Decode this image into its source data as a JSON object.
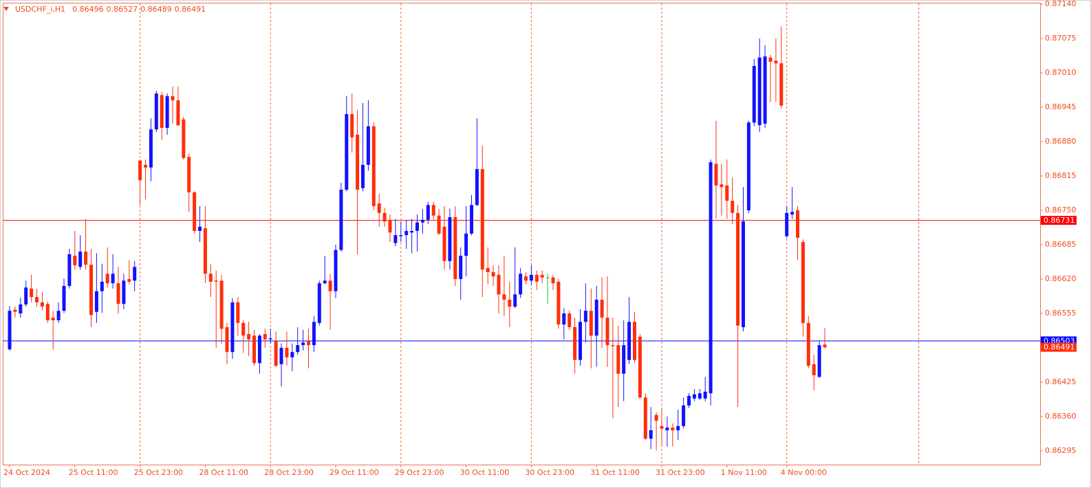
{
  "chart_data": {
    "type": "candlestick",
    "title": "USDCHF_i,H1",
    "header_values": [
      0.86496,
      0.86527,
      0.86489,
      0.86491
    ],
    "categories": [
      "24 Oct 2024",
      null,
      null,
      null,
      null,
      null,
      null,
      null,
      null,
      null,
      null,
      null,
      "25 Oct 11:00",
      null,
      null,
      null,
      null,
      null,
      null,
      null,
      null,
      null,
      null,
      null,
      "25 Oct 23:00",
      null,
      null,
      null,
      null,
      null,
      null,
      null,
      null,
      null,
      null,
      null,
      "28 Oct 11:00",
      null,
      null,
      null,
      null,
      null,
      null,
      null,
      null,
      null,
      null,
      null,
      "28 Oct 23:00",
      null,
      null,
      null,
      null,
      null,
      null,
      null,
      null,
      null,
      null,
      null,
      "29 Oct 11:00",
      null,
      null,
      null,
      null,
      null,
      null,
      null,
      null,
      null,
      null,
      null,
      "29 Oct 23:00",
      null,
      null,
      null,
      null,
      null,
      null,
      null,
      null,
      null,
      null,
      null,
      "30 Oct 11:00",
      null,
      null,
      null,
      null,
      null,
      null,
      null,
      null,
      null,
      null,
      null,
      "30 Oct 23:00",
      null,
      null,
      null,
      null,
      null,
      null,
      null,
      null,
      null,
      null,
      null,
      "31 Oct 11:00",
      null,
      null,
      null,
      null,
      null,
      null,
      null,
      null,
      null,
      null,
      null,
      "31 Oct 23:00",
      null,
      null,
      null,
      null,
      null,
      null,
      null,
      null,
      null,
      null,
      null,
      "1 Nov 11:00",
      null,
      null,
      null,
      null,
      null,
      null,
      null,
      null,
      null,
      null,
      "4 Nov 00:00",
      null,
      null,
      null,
      null,
      null,
      null,
      null
    ],
    "open": [
      0.86487,
      0.86562,
      0.86555,
      0.86572,
      0.86602,
      0.86586,
      0.86576,
      0.86573,
      0.86547,
      0.86542,
      0.8656,
      0.86607,
      0.86664,
      0.86643,
      0.86672,
      0.86647,
      0.86558,
      0.86597,
      0.8663,
      0.86612,
      0.86612,
      0.86573,
      0.8662,
      0.86617,
      0.86844,
      0.86836,
      0.86831,
      0.86903,
      0.86968,
      0.86906,
      0.86966,
      0.86958,
      0.86922,
      0.86851,
      0.86784,
      0.86711,
      0.86716,
      0.8663,
      0.86617,
      0.86617,
      0.86529,
      0.86482,
      0.86576,
      0.86537,
      0.86516,
      0.86513,
      0.86461,
      0.86516,
      0.86506,
      0.86503,
      0.86459,
      0.8649,
      0.86472,
      0.86482,
      0.86495,
      0.86503,
      0.86495,
      0.86537,
      0.86612,
      0.86617,
      0.86597,
      0.86675,
      0.86789,
      0.86932,
      0.86893,
      0.86792,
      0.86836,
      0.86909,
      0.86763,
      0.86745,
      0.86732,
      0.86688,
      0.86701,
      0.86703,
      0.86708,
      0.86711,
      0.86727,
      0.86732,
      0.8676,
      0.8674,
      0.86719,
      0.86654,
      0.86737,
      0.8662,
      0.86664,
      0.86706,
      0.8676,
      0.86828,
      0.86641,
      0.86633,
      0.86628,
      0.86591,
      0.86581,
      0.86568,
      0.86591,
      0.86625,
      0.86617,
      0.86628,
      0.86628,
      0.86623,
      0.86623,
      0.86615,
      0.86534,
      0.86555,
      0.86529,
      0.86467,
      0.86539,
      0.8656,
      0.86513,
      0.86581,
      0.86547,
      0.86495,
      0.86495,
      0.86441,
      0.86467,
      0.86539,
      0.86511,
      0.86396,
      0.86318,
      0.86363,
      0.86342,
      0.86334,
      0.86339,
      0.86334,
      0.86342,
      0.86381,
      0.86394,
      0.86394,
      0.86394,
      0.86404,
      0.86838,
      0.86799,
      0.86797,
      0.86768,
      0.86745,
      0.86529,
      0.8675,
      0.86916,
      0.86911,
      0.86914,
      0.87039,
      0.87033,
      0.87028,
      0.86701,
      0.86742,
      0.8675,
      0.8669,
      0.86537,
      0.86459,
      0.86435,
      0.86496
    ],
    "high": [
      0.86569,
      0.86568,
      0.86585,
      0.86617,
      0.86628,
      0.86602,
      0.86595,
      0.86578,
      0.8656,
      0.86576,
      0.86621,
      0.86677,
      0.86711,
      0.86703,
      0.86734,
      0.86677,
      0.86669,
      0.86649,
      0.8668,
      0.86667,
      0.86643,
      0.8663,
      0.86656,
      0.86654,
      0.86846,
      0.86846,
      0.86924,
      0.86976,
      0.86974,
      0.86971,
      0.86984,
      0.86984,
      0.86927,
      0.86857,
      0.86786,
      0.86758,
      0.86758,
      0.86649,
      0.86636,
      0.86628,
      0.86537,
      0.86584,
      0.86586,
      0.86542,
      0.86539,
      0.86524,
      0.86516,
      0.86526,
      0.86526,
      0.86521,
      0.86498,
      0.86521,
      0.86498,
      0.86529,
      0.86524,
      0.86526,
      0.8655,
      0.86617,
      0.86664,
      0.8663,
      0.86685,
      0.86802,
      0.86966,
      0.86971,
      0.8694,
      0.86953,
      0.86958,
      0.86916,
      0.86781,
      0.86755,
      0.86742,
      0.86734,
      0.86729,
      0.86732,
      0.86734,
      0.86742,
      0.86753,
      0.86766,
      0.86766,
      0.86753,
      0.86758,
      0.86753,
      0.86758,
      0.8668,
      0.86758,
      0.86779,
      0.86924,
      0.86872,
      0.8668,
      0.86646,
      0.86646,
      0.86664,
      0.86615,
      0.8668,
      0.86641,
      0.86633,
      0.86646,
      0.86636,
      0.86636,
      0.8663,
      0.86628,
      0.8662,
      0.86565,
      0.8656,
      0.86547,
      0.86563,
      0.86612,
      0.86602,
      0.86607,
      0.86623,
      0.86625,
      0.86547,
      0.86532,
      0.86542,
      0.86586,
      0.86558,
      0.86516,
      0.86404,
      0.86378,
      0.86368,
      0.86376,
      0.8636,
      0.86347,
      0.86373,
      0.86396,
      0.86404,
      0.86412,
      0.86412,
      0.86435,
      0.86846,
      0.86919,
      0.86838,
      0.86846,
      0.86812,
      0.8676,
      0.86794,
      0.86919,
      0.87036,
      0.87075,
      0.87062,
      0.87044,
      0.87075,
      0.87098,
      0.86758,
      0.86794,
      0.86758,
      0.86695,
      0.8655,
      0.86477,
      0.86503,
      0.86527
    ],
    "low": [
      0.86485,
      0.86547,
      0.86547,
      0.86568,
      0.86576,
      0.86568,
      0.8656,
      0.86537,
      0.86487,
      0.86537,
      0.86556,
      0.86602,
      0.86638,
      0.86638,
      0.86638,
      0.86529,
      0.86537,
      0.86556,
      0.86604,
      0.86602,
      0.86555,
      0.86563,
      0.8661,
      0.86597,
      0.8676,
      0.86771,
      0.86805,
      0.86898,
      0.86883,
      0.86893,
      0.86914,
      0.86909,
      0.86846,
      0.86747,
      0.86706,
      0.8669,
      0.86612,
      0.86586,
      0.8649,
      0.86498,
      0.86459,
      0.86469,
      0.86513,
      0.8648,
      0.86474,
      0.86456,
      0.86441,
      0.8649,
      0.86498,
      0.86454,
      0.86417,
      0.86456,
      0.86446,
      0.86477,
      0.86485,
      0.86451,
      0.86482,
      0.86532,
      0.8661,
      0.86524,
      0.86584,
      0.86672,
      0.86786,
      0.86859,
      0.86667,
      0.86786,
      0.86825,
      0.8675,
      0.86719,
      0.86719,
      0.8669,
      0.86682,
      0.8669,
      0.86677,
      0.86669,
      0.86672,
      0.86706,
      0.86724,
      0.86732,
      0.86703,
      0.86638,
      0.86638,
      0.86607,
      0.86581,
      0.86625,
      0.86703,
      0.86758,
      0.86586,
      0.8661,
      0.86607,
      0.86555,
      0.8655,
      0.86529,
      0.86565,
      0.86584,
      0.8661,
      0.8661,
      0.86599,
      0.86612,
      0.86573,
      0.86599,
      0.86526,
      0.86506,
      0.86524,
      0.86441,
      0.86456,
      0.865,
      0.86451,
      0.86454,
      0.8649,
      0.86454,
      0.86357,
      0.86378,
      0.86389,
      0.86459,
      0.86461,
      0.86394,
      0.86316,
      0.86298,
      0.86296,
      0.86303,
      0.86303,
      0.86303,
      0.86316,
      0.86337,
      0.86376,
      0.86389,
      0.86391,
      0.86389,
      0.86381,
      0.86734,
      0.8674,
      0.86734,
      0.86724,
      0.86378,
      0.86521,
      0.86745,
      0.86909,
      0.86898,
      0.86906,
      0.86955,
      0.86955,
      0.86942,
      0.86698,
      0.86734,
      0.86656,
      0.86511,
      0.86451,
      0.86409,
      0.86433,
      0.86489
    ],
    "close": [
      0.8656,
      0.86558,
      0.86572,
      0.86604,
      0.86586,
      0.86576,
      0.86568,
      0.86542,
      0.86542,
      0.8656,
      0.86607,
      0.86667,
      0.86646,
      0.86672,
      0.86647,
      0.86552,
      0.86597,
      0.86615,
      0.86612,
      0.8663,
      0.86573,
      0.86617,
      0.86615,
      0.86643,
      0.86807,
      0.86831,
      0.86903,
      0.86971,
      0.86906,
      0.86966,
      0.86958,
      0.86911,
      0.86849,
      0.86784,
      0.86711,
      0.86719,
      0.8663,
      0.86615,
      0.86615,
      0.86526,
      0.86482,
      0.86576,
      0.86537,
      0.86513,
      0.86506,
      0.86461,
      0.86513,
      0.86506,
      0.86508,
      0.86456,
      0.8649,
      0.86472,
      0.86482,
      0.86495,
      0.865,
      0.86495,
      0.86539,
      0.86612,
      0.86617,
      0.86597,
      0.86675,
      0.86789,
      0.86932,
      0.86888,
      0.86789,
      0.86836,
      0.86909,
      0.86758,
      0.86745,
      0.86729,
      0.86708,
      0.86703,
      0.86703,
      0.86711,
      0.86711,
      0.86727,
      0.86732,
      0.8676,
      0.8674,
      0.86706,
      0.86654,
      0.86737,
      0.8662,
      0.86664,
      0.86706,
      0.8676,
      0.86828,
      0.86638,
      0.86633,
      0.86625,
      0.86591,
      0.86581,
      0.86568,
      0.86591,
      0.8663,
      0.86617,
      0.86628,
      0.86615,
      0.86623,
      0.86623,
      0.86612,
      0.86534,
      0.86555,
      0.86529,
      0.86467,
      0.86539,
      0.8656,
      0.86513,
      0.86581,
      0.86547,
      0.86495,
      0.86493,
      0.86441,
      0.86495,
      0.86539,
      0.86467,
      0.86396,
      0.86318,
      0.86334,
      0.86352,
      0.86337,
      0.86339,
      0.86334,
      0.86342,
      0.86381,
      0.86399,
      0.86402,
      0.86404,
      0.86407,
      0.86841,
      0.86797,
      0.86794,
      0.86768,
      0.86745,
      0.86532,
      0.86729,
      0.86916,
      0.87023,
      0.87039,
      0.87041,
      0.87031,
      0.87028,
      0.86948,
      0.86745,
      0.86747,
      0.86698,
      0.86537,
      0.86456,
      0.86438,
      0.86495,
      0.86491
    ],
    "up_color": "#1212ff",
    "down_color": "#ff2e0a",
    "doji_color": "#22c322",
    "ylim": [
      0.86269,
      0.8714
    ],
    "yticks": [
      {
        "value": 0.8714,
        "label": "0.87140"
      },
      0.87075,
      {
        "value": 0.8701,
        "label": "0.87010"
      },
      0.86945,
      {
        "value": 0.8688,
        "label": "0.86880"
      },
      0.86815,
      {
        "value": 0.8675,
        "label": "0.86750"
      },
      0.86685,
      {
        "value": 0.8662,
        "label": "0.86620"
      },
      0.86555,
      0.86425,
      {
        "value": 0.8636,
        "label": "0.86360"
      },
      0.86295
    ],
    "hlines": [
      {
        "value": 0.86731,
        "color": "#ff0000"
      },
      {
        "value": 0.86503,
        "color": "#0000ff"
      }
    ],
    "price_tag": 0.86491,
    "grid": true
  }
}
